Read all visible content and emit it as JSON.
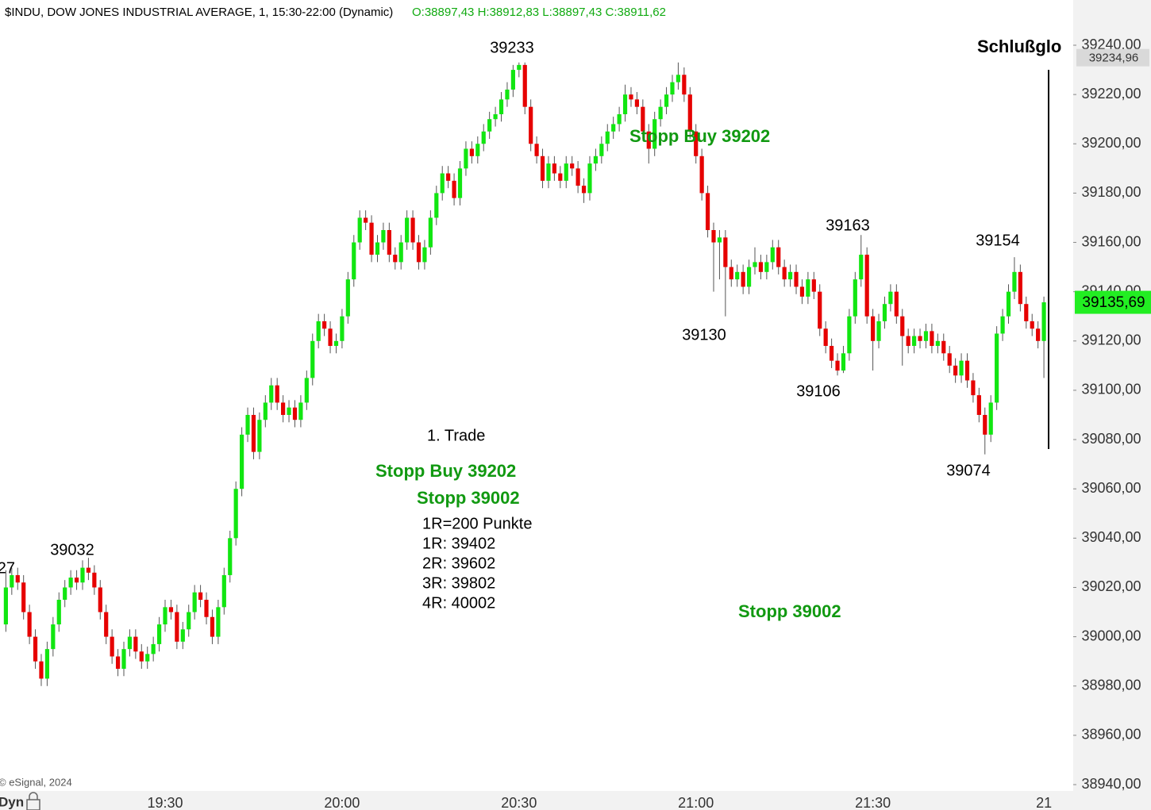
{
  "chart_data": {
    "type": "candlestick",
    "header": "$INDU, DOW JONES INDUSTRIAL AVERAGE, 1, 15:30-22:00 (Dynamic)",
    "header_ohlc": "O:38897,43 H:38912,83 L:38897,43 C:38911,62",
    "copyright": "© eSignal, 2024",
    "mode": "Dyn",
    "up_color": "#11e611",
    "down_color": "#e60000",
    "categories": [
      null,
      null,
      null,
      null,
      null,
      null,
      null,
      null,
      null,
      null,
      null,
      null,
      null,
      null,
      null,
      null,
      null,
      null,
      null,
      null,
      null,
      null,
      null,
      null,
      null,
      null,
      null,
      "19:30",
      null,
      null,
      null,
      null,
      null,
      null,
      null,
      null,
      null,
      null,
      null,
      null,
      null,
      null,
      null,
      null,
      null,
      null,
      null,
      null,
      null,
      null,
      null,
      null,
      null,
      null,
      null,
      null,
      null,
      "20:00",
      null,
      null,
      null,
      null,
      null,
      null,
      null,
      null,
      null,
      null,
      null,
      null,
      null,
      null,
      null,
      null,
      null,
      null,
      null,
      null,
      null,
      null,
      null,
      null,
      null,
      null,
      null,
      null,
      null,
      "20:30",
      null,
      null,
      null,
      null,
      null,
      null,
      null,
      null,
      null,
      null,
      null,
      null,
      null,
      null,
      null,
      null,
      null,
      null,
      null,
      null,
      null,
      null,
      null,
      null,
      null,
      null,
      null,
      null,
      null,
      "21:00",
      null,
      null,
      null,
      null,
      null,
      null,
      null,
      null,
      null,
      null,
      null,
      null,
      null,
      null,
      null,
      null,
      null,
      null,
      null,
      null,
      null,
      null,
      null,
      null,
      null,
      null,
      null,
      null,
      null,
      "21:30",
      null,
      null,
      null,
      null,
      null,
      null,
      null,
      null,
      null,
      null,
      null,
      null,
      null,
      null,
      null,
      null,
      null,
      null,
      null,
      null,
      null,
      null,
      null,
      null,
      null,
      null,
      null,
      null,
      "21"
    ],
    "open": [
      39005,
      39020,
      39025,
      39022,
      39010,
      39000,
      38990,
      38983,
      38995,
      39005,
      39015,
      39020,
      39024,
      39022,
      39028,
      39026,
      39020,
      39010,
      39000,
      38992,
      38987,
      38995,
      39000,
      38994,
      38990,
      38993,
      38997,
      39005,
      39012,
      39010,
      38998,
      39003,
      39010,
      39018,
      39015,
      39008,
      39000,
      39012,
      39025,
      39040,
      39060,
      39082,
      39090,
      39075,
      39088,
      39095,
      39102,
      39095,
      39090,
      39093,
      39088,
      39095,
      39105,
      39120,
      39128,
      39125,
      39118,
      39120,
      39130,
      39145,
      39160,
      39170,
      39168,
      39155,
      39160,
      39165,
      39155,
      39152,
      39160,
      39170,
      39160,
      39152,
      39158,
      39170,
      39180,
      39188,
      39185,
      39178,
      39190,
      39198,
      39195,
      39200,
      39205,
      39210,
      39212,
      39218,
      39222,
      39230,
      39232,
      39215,
      39200,
      39195,
      39185,
      39192,
      39188,
      39185,
      39192,
      39190,
      39183,
      39180,
      39192,
      39195,
      39200,
      39205,
      39208,
      39212,
      39220,
      39218,
      39215,
      39205,
      39198,
      39210,
      39215,
      39220,
      39225,
      39228,
      39220,
      39205,
      39195,
      39180,
      39165,
      39160,
      39162,
      39150,
      39145,
      39148,
      39142,
      39150,
      39152,
      39148,
      39152,
      39158,
      39150,
      39145,
      39148,
      39142,
      39138,
      39145,
      39140,
      39125,
      39118,
      39112,
      39108,
      39115,
      39130,
      39145,
      39155,
      39130,
      39120,
      39128,
      39135,
      39140,
      39130,
      39122,
      39118,
      39122,
      39120,
      39124,
      39118,
      39120,
      39115,
      39110,
      39106,
      39112,
      39104,
      39098,
      39090,
      39082,
      39095,
      39123,
      39130,
      39140,
      39148,
      39135,
      39128,
      39125,
      39120
    ],
    "high": [
      39027,
      39028,
      39028,
      39025,
      39013,
      39003,
      38993,
      38998,
      39008,
      39018,
      39023,
      39027,
      39027,
      39031,
      39032,
      39029,
      39023,
      39013,
      39003,
      38995,
      38998,
      39003,
      39003,
      38997,
      38996,
      39000,
      39008,
      39015,
      39015,
      39013,
      39006,
      39013,
      39021,
      39021,
      39018,
      39011,
      39015,
      39028,
      39043,
      39063,
      39085,
      39093,
      39093,
      39091,
      39098,
      39105,
      39105,
      39098,
      39096,
      39096,
      39098,
      39108,
      39123,
      39131,
      39131,
      39128,
      39123,
      39133,
      39148,
      39163,
      39173,
      39173,
      39171,
      39163,
      39168,
      39168,
      39158,
      39163,
      39173,
      39173,
      39163,
      39161,
      39173,
      39183,
      39191,
      39191,
      39188,
      39193,
      39201,
      39201,
      39203,
      39208,
      39213,
      39215,
      39221,
      39225,
      39232,
      39233,
      39233,
      39218,
      39203,
      39198,
      39195,
      39195,
      39191,
      39195,
      39195,
      39193,
      39186,
      39195,
      39198,
      39203,
      39208,
      39211,
      39215,
      39224,
      39223,
      39221,
      39218,
      39208,
      39213,
      39218,
      39223,
      39228,
      39233,
      39231,
      39223,
      39208,
      39198,
      39183,
      39168,
      39165,
      39165,
      39153,
      39151,
      39151,
      39153,
      39158,
      39155,
      39155,
      39161,
      39161,
      39153,
      39151,
      39151,
      39145,
      39148,
      39148,
      39143,
      39128,
      39121,
      39115,
      39118,
      39133,
      39148,
      39163,
      39158,
      39133,
      39131,
      39138,
      39143,
      39143,
      39133,
      39125,
      39125,
      39125,
      39127,
      39127,
      39123,
      39123,
      39118,
      39113,
      39115,
      39115,
      39107,
      39101,
      39093,
      39098,
      39126,
      39133,
      39143,
      39154,
      39151,
      39138,
      39131,
      39128,
      39138
    ],
    "low": [
      39002,
      39017,
      39019,
      39007,
      38997,
      38987,
      38980,
      38980,
      38992,
      39002,
      39012,
      39017,
      39019,
      39019,
      39023,
      39017,
      39007,
      38997,
      38989,
      38984,
      38984,
      38992,
      38991,
      38987,
      38987,
      38990,
      38994,
      39002,
      39007,
      38995,
      38995,
      39000,
      39007,
      39012,
      39005,
      38997,
      38997,
      39009,
      39022,
      39037,
      39057,
      39079,
      39072,
      39072,
      39085,
      39092,
      39092,
      39087,
      39087,
      39085,
      39085,
      39092,
      39102,
      39117,
      39122,
      39115,
      39115,
      39117,
      39127,
      39142,
      39157,
      39165,
      39152,
      39152,
      39157,
      39152,
      39149,
      39149,
      39157,
      39157,
      39149,
      39149,
      39155,
      39167,
      39177,
      39182,
      39175,
      39175,
      39187,
      39192,
      39192,
      39197,
      39202,
      39207,
      39209,
      39215,
      39219,
      39227,
      39212,
      39197,
      39192,
      39182,
      39182,
      39185,
      39182,
      39182,
      39187,
      39180,
      39176,
      39177,
      39189,
      39192,
      39197,
      39202,
      39205,
      39209,
      39215,
      39212,
      39202,
      39192,
      39195,
      39207,
      39212,
      39217,
      39222,
      39217,
      39202,
      39192,
      39177,
      39162,
      39140,
      39145,
      39130,
      39142,
      39142,
      39139,
      39139,
      39147,
      39145,
      39145,
      39149,
      39147,
      39142,
      39142,
      39139,
      39135,
      39135,
      39137,
      39122,
      39115,
      39109,
      39106,
      39107,
      39112,
      39127,
      39142,
      39127,
      39108,
      39117,
      39125,
      39132,
      39127,
      39110,
      39115,
      39115,
      39117,
      39117,
      39115,
      39115,
      39112,
      39107,
      39103,
      39103,
      39101,
      39095,
      39087,
      39074,
      39079,
      39092,
      39120,
      39127,
      39137,
      39132,
      39125,
      39122,
      39117,
      39105
    ],
    "close": [
      39020,
      39025,
      39022,
      39010,
      39000,
      38990,
      38983,
      38995,
      39005,
      39015,
      39020,
      39024,
      39022,
      39028,
      39026,
      39020,
      39010,
      39000,
      38992,
      38987,
      38995,
      39000,
      38994,
      38990,
      38993,
      38997,
      39005,
      39012,
      39010,
      38998,
      39003,
      39010,
      39018,
      39015,
      39008,
      39000,
      39012,
      39025,
      39040,
      39060,
      39082,
      39090,
      39075,
      39088,
      39095,
      39102,
      39095,
      39090,
      39093,
      39088,
      39095,
      39105,
      39120,
      39128,
      39125,
      39118,
      39120,
      39130,
      39145,
      39160,
      39170,
      39168,
      39155,
      39160,
      39165,
      39155,
      39152,
      39160,
      39170,
      39160,
      39152,
      39158,
      39170,
      39180,
      39188,
      39185,
      39178,
      39190,
      39198,
      39195,
      39200,
      39205,
      39210,
      39212,
      39218,
      39222,
      39230,
      39232,
      39215,
      39200,
      39195,
      39185,
      39192,
      39188,
      39185,
      39192,
      39190,
      39183,
      39180,
      39192,
      39195,
      39200,
      39205,
      39208,
      39212,
      39220,
      39218,
      39215,
      39205,
      39198,
      39210,
      39215,
      39220,
      39225,
      39228,
      39220,
      39205,
      39195,
      39180,
      39165,
      39160,
      39162,
      39150,
      39145,
      39148,
      39142,
      39150,
      39152,
      39148,
      39152,
      39158,
      39150,
      39145,
      39148,
      39142,
      39138,
      39145,
      39140,
      39125,
      39118,
      39112,
      39108,
      39115,
      39130,
      39145,
      39155,
      39130,
      39120,
      39128,
      39135,
      39140,
      39130,
      39122,
      39118,
      39122,
      39120,
      39124,
      39118,
      39120,
      39115,
      39110,
      39106,
      39112,
      39104,
      39098,
      39090,
      39082,
      39095,
      39123,
      39130,
      39140,
      39148,
      39135,
      39128,
      39125,
      39120,
      39135.69
    ],
    "ylim": [
      38940,
      39240
    ],
    "yticks": [
      {
        "value": 38940,
        "label": "38940,00"
      },
      {
        "value": 38960,
        "label": "38960,00"
      },
      {
        "value": 38980,
        "label": "38980,00"
      },
      {
        "value": 39000,
        "label": "39000,00"
      },
      {
        "value": 39020,
        "label": "39020,00"
      },
      {
        "value": 39040,
        "label": "39040,00"
      },
      {
        "value": 39060,
        "label": "39060,00"
      },
      {
        "value": 39080,
        "label": "39080,00"
      },
      {
        "value": 39100,
        "label": "39100,00"
      },
      {
        "value": 39120,
        "label": "39120,00"
      },
      {
        "value": 39140,
        "label": "39140,00"
      },
      {
        "value": 39160,
        "label": "39160,00"
      },
      {
        "value": 39180,
        "label": "39180,00"
      },
      {
        "value": 39200,
        "label": "39200,00"
      },
      {
        "value": 39220,
        "label": "39220,00"
      },
      {
        "value": 39240,
        "label": "39240,00"
      }
    ],
    "price_tags": [
      {
        "value": 39234.96,
        "label": "39234,96"
      },
      {
        "value": 39135.69,
        "label": "39135,69"
      }
    ],
    "annotations": [
      "39233",
      "39163",
      "39154",
      "39130",
      "39106",
      "39074",
      "39032",
      "27",
      "1. Trade",
      "Stopp Buy 39202",
      "Stopp 39002",
      "1R=200 Punkte",
      "1R: 39402",
      "2R: 39602",
      "3R: 39802",
      "4R: 40002",
      "Stopp Buy 39202",
      "Stopp 39002",
      "Schlußglo"
    ]
  }
}
